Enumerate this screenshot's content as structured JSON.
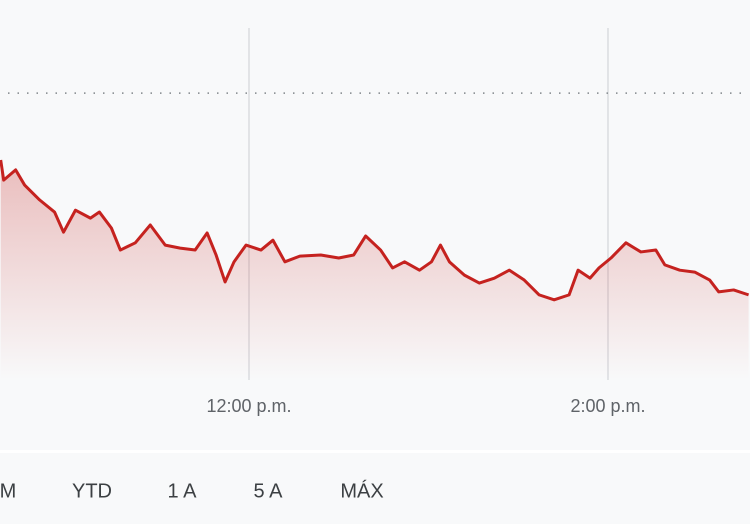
{
  "chart_data": {
    "type": "line",
    "x": [
      637,
      638,
      642,
      645,
      650,
      655,
      658,
      662,
      667,
      670,
      674,
      677,
      682,
      687,
      692,
      697,
      702,
      706,
      709,
      712,
      715,
      719,
      724,
      728,
      732,
      737,
      744,
      750,
      755,
      759,
      764,
      768,
      772,
      777,
      781,
      784,
      787,
      792,
      797,
      802,
      807,
      812,
      817,
      822,
      827,
      830,
      834,
      837,
      841,
      846,
      851,
      856,
      859,
      864,
      869,
      874,
      877,
      882,
      887
    ],
    "series": [
      {
        "color": "#c5221f",
        "values": [
          57.9,
          52.6,
          55.3,
          51.3,
          47.4,
          44.2,
          38.9,
          44.7,
          42.6,
          44.2,
          40,
          34.2,
          36.1,
          40.8,
          35.5,
          34.7,
          34.2,
          38.7,
          32.9,
          25.8,
          31.1,
          35.5,
          34.2,
          36.8,
          31.1,
          32.6,
          32.9,
          32.1,
          32.9,
          37.9,
          34.2,
          29.5,
          31.1,
          28.9,
          31.1,
          35.5,
          31.1,
          27.6,
          25.5,
          26.8,
          28.9,
          26.3,
          22.4,
          21.1,
          22.4,
          28.9,
          26.8,
          29.5,
          32.1,
          36.1,
          33.7,
          34.2,
          30.3,
          28.9,
          28.4,
          26.3,
          23.2,
          23.7,
          22.4
        ]
      }
    ],
    "reference_line": 75.5,
    "xlim": [
      636.77,
      887.47
    ],
    "ylim": [
      0,
      100
    ],
    "xticks": [
      {
        "value": 720,
        "label": "12:00 p.m."
      },
      {
        "value": 840,
        "label": "2:00 p.m."
      }
    ],
    "grid": true
  },
  "range_buttons": [
    "M",
    "YTD",
    "1 A",
    "5 A",
    "MÁX"
  ]
}
